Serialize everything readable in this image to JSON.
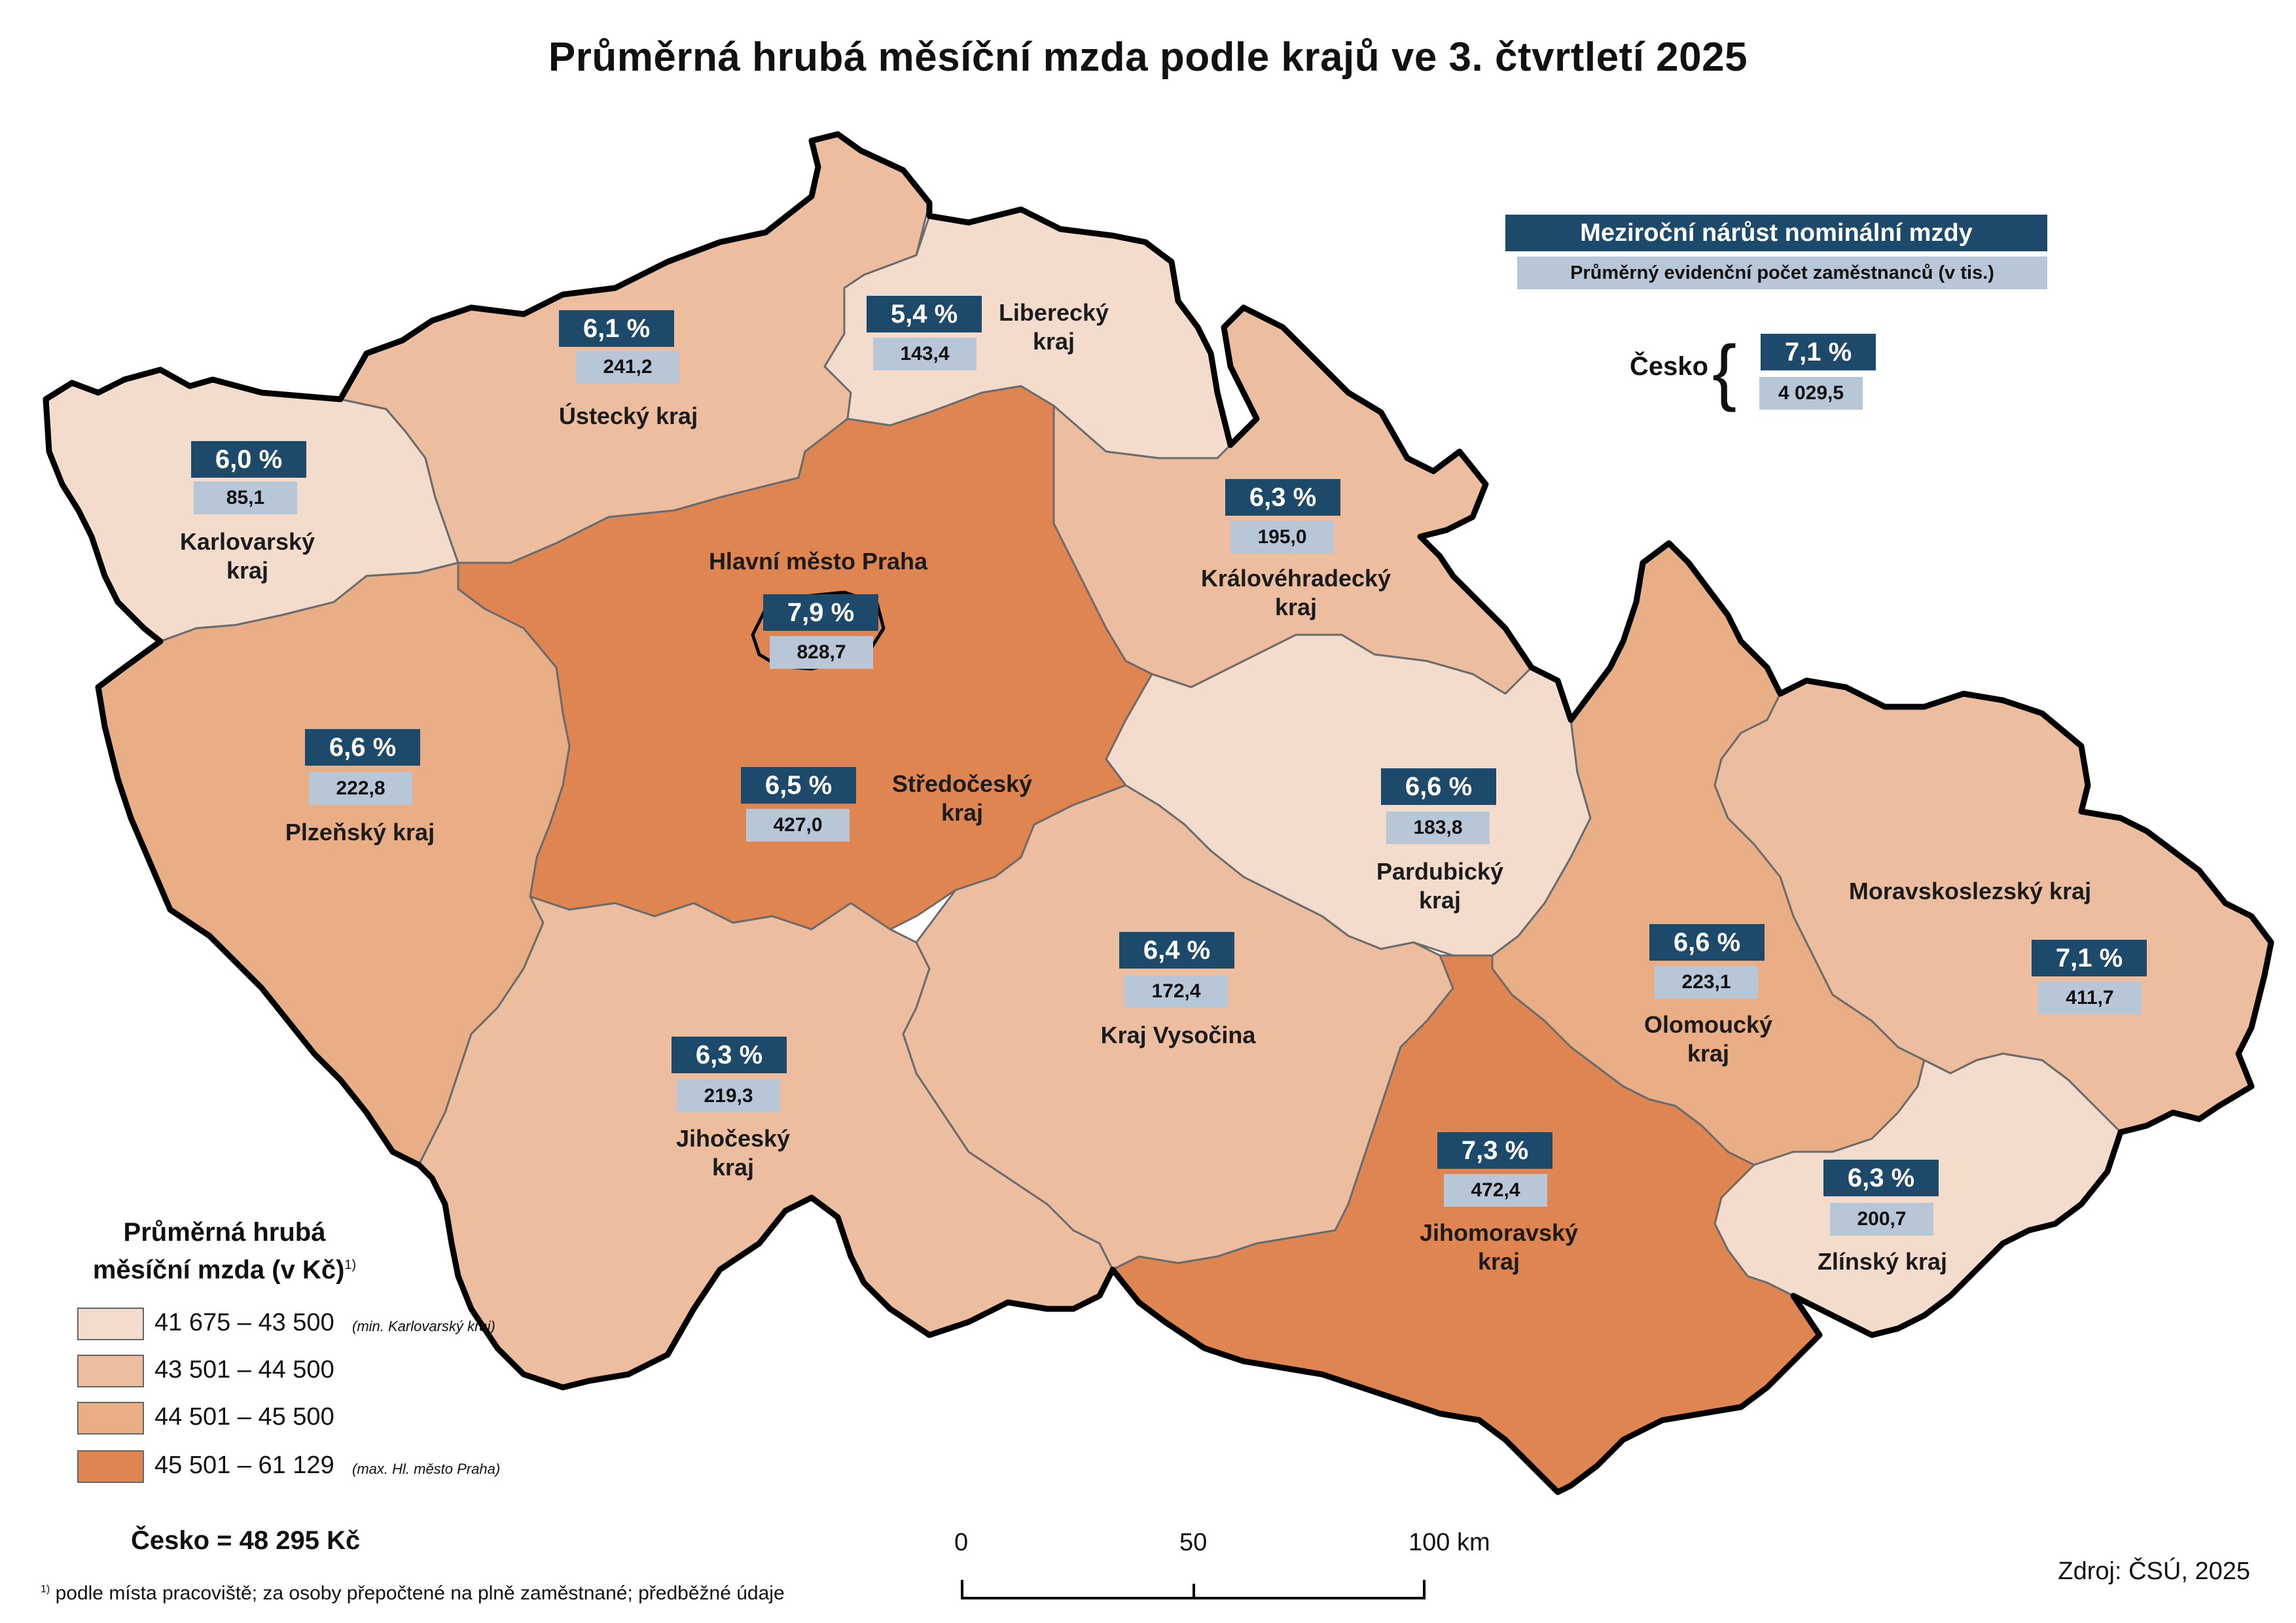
{
  "title": "Průměrná hrubá měsíční mzda podle krajů ve 3. čtvrtletí 2025",
  "info_box": {
    "main": "Meziroční nárůst nominální mzdy",
    "sub": "Průměrný evidenční počet zaměstnanců (v tis.)"
  },
  "country": {
    "name": "Česko",
    "growth": "7,1 %",
    "employees": "4 029,5"
  },
  "colors": {
    "class1": "#f4dccd",
    "class2": "#ecbe9f",
    "class3": "#e9ae86",
    "class4": "#df8552",
    "badge": "#1d4a6b",
    "sub_badge": "#b8c7d8"
  },
  "regions": {
    "karlovarsky": {
      "name": "Karlovarský kraj",
      "growth": "6,0 %",
      "employees": "85,1",
      "class": "class1"
    },
    "ustecky": {
      "name": "Ústecký kraj",
      "growth": "6,1 %",
      "employees": "241,2",
      "class": "class2"
    },
    "liberecky": {
      "name": "Liberecký kraj",
      "growth": "5,4 %",
      "employees": "143,4",
      "class": "class1"
    },
    "kralovehradecky": {
      "name": "Královéhradecký kraj",
      "growth": "6,3 %",
      "employees": "195,0",
      "class": "class2"
    },
    "praha": {
      "name": "Hlavní město Praha",
      "growth": "7,9 %",
      "employees": "828,7",
      "class": "class4"
    },
    "stredocesky": {
      "name": "Středočeský kraj",
      "growth": "6,5 %",
      "employees": "427,0",
      "class": "class4"
    },
    "plzensky": {
      "name": "Plzeňský kraj",
      "growth": "6,6 %",
      "employees": "222,8",
      "class": "class3"
    },
    "pardubicky": {
      "name": "Pardubický kraj",
      "growth": "6,6 %",
      "employees": "183,8",
      "class": "class1"
    },
    "vysocina": {
      "name": "Kraj Vysočina",
      "growth": "6,4 %",
      "employees": "172,4",
      "class": "class2"
    },
    "jihocesky": {
      "name": "Jihočeský kraj",
      "growth": "6,3 %",
      "employees": "219,3",
      "class": "class2"
    },
    "jihomoravsky": {
      "name": "Jihomoravský kraj",
      "growth": "7,3 %",
      "employees": "472,4",
      "class": "class4"
    },
    "olomoucky": {
      "name": "Olomoucký kraj",
      "growth": "6,6 %",
      "employees": "223,1",
      "class": "class3"
    },
    "moravskoslezsky": {
      "name": "Moravskoslezský kraj",
      "growth": "7,1 %",
      "employees": "411,7",
      "class": "class2"
    },
    "zlinsky": {
      "name": "Zlínský kraj",
      "growth": "6,3 %",
      "employees": "200,7",
      "class": "class1"
    }
  },
  "legend": {
    "title": "Průměrná hrubá měsíční mzda (v Kč)",
    "title_sup": "1)",
    "items": [
      {
        "range": "41 675 – 43 500",
        "note": "(min. Karlovarský kraj)",
        "class": "class1"
      },
      {
        "range": "43 501 – 44 500",
        "note": "",
        "class": "class2"
      },
      {
        "range": "44 501 – 45 500",
        "note": "",
        "class": "class3"
      },
      {
        "range": "45 501 – 61 129",
        "note": "(max. Hl. město Praha)",
        "class": "class4"
      }
    ]
  },
  "total": "Česko = 48 295 Kč",
  "footnote": {
    "sup": "1)",
    "text": "podle místa pracoviště; za osoby přepočtené na plně zaměstnané; předběžné údaje"
  },
  "scale": {
    "ticks": [
      "0",
      "50",
      "100 km"
    ]
  },
  "source": "Zdroj: ČSÚ, 2025"
}
